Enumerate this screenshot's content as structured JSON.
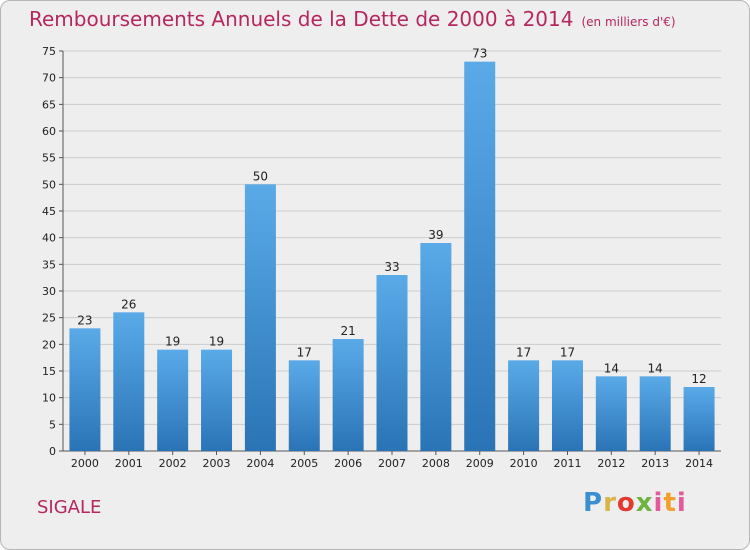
{
  "header": {
    "title": "Remboursements Annuels de la Dette de 2000 à 2014",
    "unit": "(en milliers d'€)"
  },
  "footer": {
    "city": "SIGALE",
    "logo": "Proxiti"
  },
  "colors": {
    "accent": "#b5275e",
    "bar_top": "#5aaae8",
    "bar_bottom": "#2a74b6",
    "grid": "#cccccc",
    "background": "#eeeeee"
  },
  "chart_data": {
    "type": "bar",
    "title": "Remboursements Annuels de la Dette de 2000 à 2014",
    "subtitle": "(en milliers d'€)",
    "xlabel": "",
    "ylabel": "",
    "categories": [
      "2000",
      "2001",
      "2002",
      "2003",
      "2004",
      "2005",
      "2006",
      "2007",
      "2008",
      "2009",
      "2010",
      "2011",
      "2012",
      "2013",
      "2014"
    ],
    "values": [
      23,
      26,
      19,
      19,
      50,
      17,
      21,
      33,
      39,
      73,
      17,
      17,
      14,
      14,
      12
    ],
    "ylim": [
      0,
      75
    ],
    "yticks": [
      0,
      5,
      10,
      15,
      20,
      25,
      30,
      35,
      40,
      45,
      50,
      55,
      60,
      65,
      70,
      75
    ],
    "grid": true,
    "legend": "none"
  }
}
